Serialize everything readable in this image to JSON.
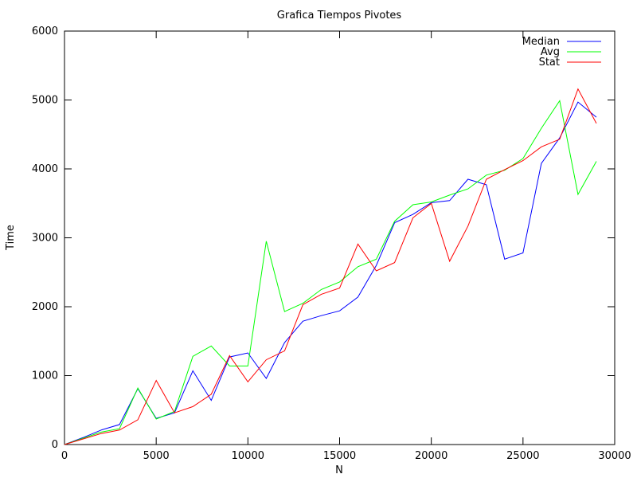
{
  "chart_data": {
    "type": "line",
    "title": "Grafica Tiempos Pivotes",
    "xlabel": "N",
    "ylabel": "Time",
    "xlim": [
      0,
      30000
    ],
    "ylim": [
      0,
      6000
    ],
    "xticks": [
      0,
      5000,
      10000,
      15000,
      20000,
      25000,
      30000
    ],
    "yticks": [
      0,
      1000,
      2000,
      3000,
      4000,
      5000,
      6000
    ],
    "grid": false,
    "legend_position": "top-right",
    "x": [
      0,
      1000,
      2000,
      3000,
      4000,
      5000,
      6000,
      7000,
      8000,
      9000,
      10000,
      11000,
      12000,
      13000,
      14000,
      15000,
      16000,
      17000,
      18000,
      19000,
      20000,
      21000,
      22000,
      23000,
      24000,
      25000,
      26000,
      27000,
      28000,
      29000
    ],
    "series": [
      {
        "name": "Median",
        "color": "#0000ff",
        "values": [
          0,
          100,
          210,
          290,
          810,
          380,
          460,
          1070,
          640,
          1270,
          1330,
          960,
          1480,
          1790,
          1870,
          1940,
          2140,
          2600,
          3220,
          3340,
          3510,
          3540,
          3850,
          3770,
          2690,
          2780,
          4080,
          4450,
          4970,
          4750
        ]
      },
      {
        "name": "Avg",
        "color": "#00ff00",
        "values": [
          0,
          90,
          180,
          230,
          820,
          370,
          480,
          1280,
          1430,
          1140,
          1140,
          2950,
          1930,
          2050,
          2250,
          2360,
          2580,
          2690,
          3240,
          3480,
          3520,
          3620,
          3710,
          3910,
          3980,
          4150,
          4590,
          4990,
          3630,
          4110
        ]
      },
      {
        "name": "Stat",
        "color": "#ff0000",
        "values": [
          0,
          80,
          160,
          210,
          360,
          930,
          460,
          550,
          730,
          1290,
          910,
          1230,
          1360,
          2030,
          2180,
          2270,
          2910,
          2520,
          2640,
          3290,
          3500,
          2660,
          3170,
          3850,
          3990,
          4120,
          4320,
          4430,
          5160,
          4660
        ]
      }
    ]
  }
}
